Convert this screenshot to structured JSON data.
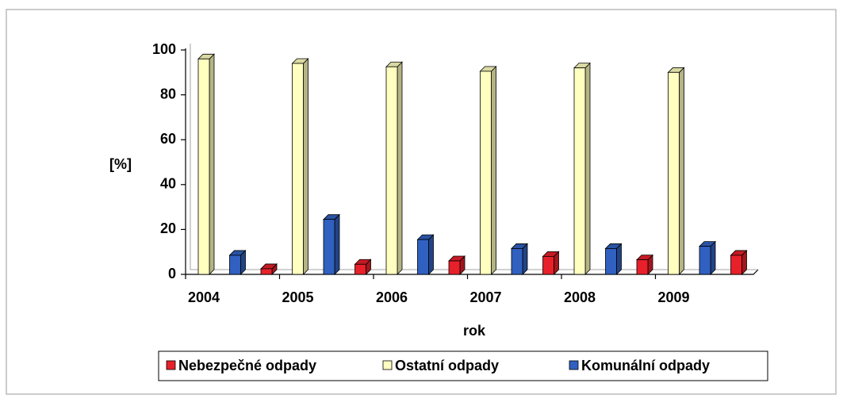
{
  "chart_data": {
    "type": "bar3d",
    "categories": [
      "2004",
      "2005",
      "2006",
      "2007",
      "2008",
      "2009"
    ],
    "series": [
      {
        "name": "Nebezpečné odpady",
        "color": "#e8202a",
        "values": [
          2.5,
          4.5,
          6,
          8,
          6.5,
          8.5
        ]
      },
      {
        "name": "Ostatní odpady",
        "color": "#ffffc0",
        "values": [
          96,
          94,
          92.5,
          90.5,
          92,
          90
        ]
      },
      {
        "name": "Komunální odpady",
        "color": "#3060c0",
        "values": [
          8.5,
          24.5,
          15.5,
          11.5,
          11.5,
          12.5
        ]
      }
    ],
    "ylim": [
      0,
      100
    ],
    "yticks": [
      0,
      20,
      40,
      60,
      80,
      100
    ],
    "y_label": "[%]",
    "x_label": "rok",
    "legend": "bottom"
  }
}
